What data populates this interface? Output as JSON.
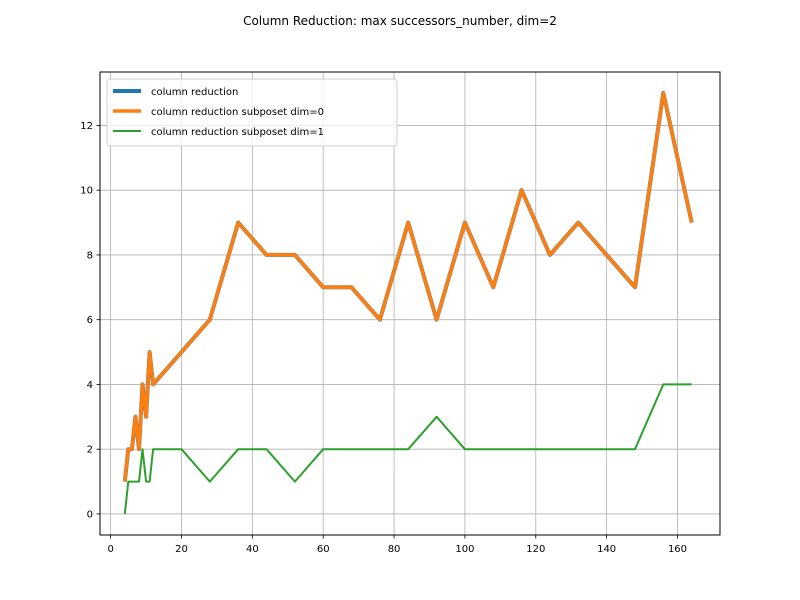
{
  "chart_data": {
    "type": "line",
    "title": "Column Reduction: max successors_number, dim=2",
    "xlabel": "",
    "ylabel": "",
    "xlim": [
      -3,
      172
    ],
    "ylim": [
      -0.65,
      13.65
    ],
    "xticks": [
      0,
      20,
      40,
      60,
      80,
      100,
      120,
      140,
      160
    ],
    "yticks": [
      0,
      2,
      4,
      6,
      8,
      10,
      12
    ],
    "grid": true,
    "legend_position": "upper-left",
    "series": [
      {
        "name": "column reduction",
        "color": "#1f77b4",
        "x": [
          4,
          5,
          6,
          7,
          8,
          9,
          10,
          11,
          12,
          20,
          28,
          36,
          44,
          52,
          60,
          68,
          76,
          84,
          92,
          100,
          108,
          116,
          124,
          132,
          140,
          148,
          156,
          164
        ],
        "y": [
          1,
          2,
          2,
          3,
          2,
          4,
          3,
          5,
          4,
          5,
          6,
          9,
          8,
          8,
          7,
          7,
          6,
          9,
          6,
          9,
          7,
          10,
          8,
          9,
          8,
          7,
          13,
          9
        ]
      },
      {
        "name": "column reduction subposet dim=0",
        "color": "#ff7f0e",
        "x": [
          4,
          5,
          6,
          7,
          8,
          9,
          10,
          11,
          12,
          20,
          28,
          36,
          44,
          52,
          60,
          68,
          76,
          84,
          92,
          100,
          108,
          116,
          124,
          132,
          140,
          148,
          156,
          164
        ],
        "y": [
          1,
          2,
          2,
          3,
          2,
          4,
          3,
          5,
          4,
          5,
          6,
          9,
          8,
          8,
          7,
          7,
          6,
          9,
          6,
          9,
          7,
          10,
          8,
          9,
          8,
          7,
          13,
          9
        ]
      },
      {
        "name": "column reduction subposet dim=1",
        "color": "#2ca02c",
        "x": [
          4,
          5,
          6,
          7,
          8,
          9,
          10,
          11,
          12,
          20,
          28,
          36,
          44,
          52,
          60,
          68,
          76,
          84,
          92,
          100,
          108,
          116,
          124,
          132,
          140,
          148,
          156,
          164
        ],
        "y": [
          0,
          1,
          1,
          1,
          1,
          2,
          1,
          1,
          2,
          2,
          1,
          2,
          2,
          1,
          2,
          2,
          2,
          2,
          3,
          2,
          2,
          2,
          2,
          2,
          2,
          2,
          4,
          4
        ]
      }
    ]
  }
}
